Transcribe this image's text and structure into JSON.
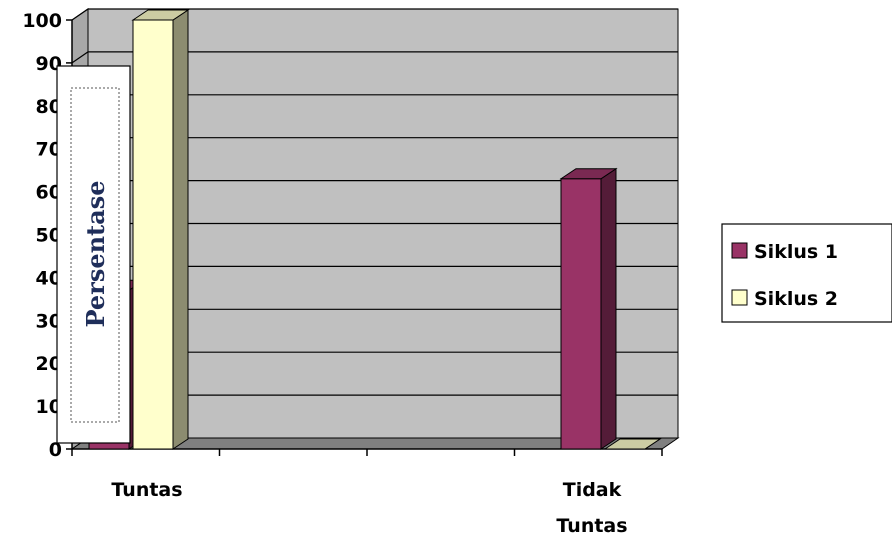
{
  "chart_data": {
    "type": "bar",
    "categories": [
      "Tuntas",
      "Tidak Tuntas"
    ],
    "series": [
      {
        "name": "Siklus 1",
        "values": [
          37,
          63
        ]
      },
      {
        "name": "Siklus 2",
        "values": [
          100,
          0
        ]
      }
    ],
    "ylabel": "Persentase",
    "xlabel": "",
    "ylim": [
      0,
      100
    ],
    "yticks": [
      0,
      10,
      20,
      30,
      40,
      50,
      60,
      70,
      80,
      90,
      100
    ],
    "grid": true,
    "legend_position": "right",
    "colors": {
      "series": [
        "#993366",
        "#ffffcc"
      ],
      "wall": "#c0c0c0",
      "gridline": "#000000"
    }
  }
}
